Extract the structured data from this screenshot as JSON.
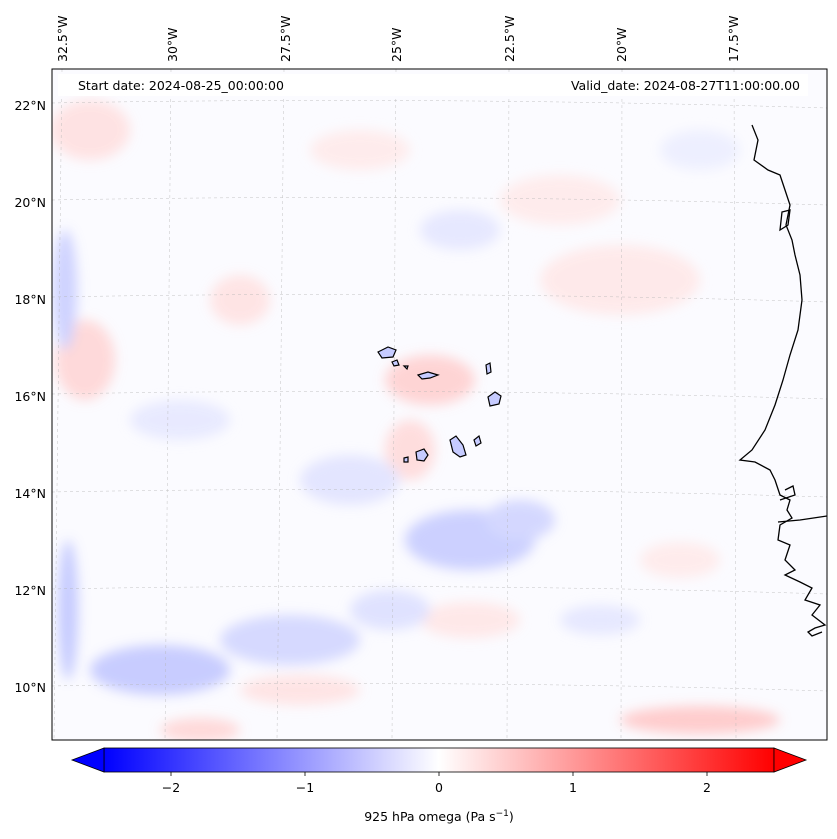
{
  "header": {
    "start_date": "Start date: 2024-08-25_00:00:00",
    "valid_date": "Valid_date: 2024-08-27T11:00:00.00"
  },
  "axes": {
    "lon_labels": [
      "32.5°W",
      "30°W",
      "27.5°W",
      "25°W",
      "22.5°W",
      "20°W",
      "17.5°W"
    ],
    "lat_labels": [
      "22°N",
      "20°N",
      "18°N",
      "16°N",
      "14°N",
      "12°N",
      "10°N"
    ]
  },
  "colorbar": {
    "ticks": [
      "−2",
      "−1",
      "0",
      "1",
      "2"
    ],
    "tick_values": [
      -2,
      -1,
      0,
      1,
      2
    ],
    "range": [
      -2.6,
      2.6
    ],
    "label_main": "925 hPa omega (Pa s",
    "label_exp": "−1",
    "label_close": ")",
    "colors": {
      "negative": "#0000ff",
      "zero": "#ffffff",
      "positive": "#ff0000"
    }
  },
  "map": {
    "projection": "conic",
    "lon_range": [
      -33,
      -15
    ],
    "lat_range": [
      9,
      22.5
    ],
    "gridlines": true,
    "coastline_color": "#000000",
    "field_colors": {
      "light_blue": "#dde0ff",
      "mid_blue": "#b9bfff",
      "light_red": "#ffe3e3",
      "mid_red": "#ffc8c8"
    }
  }
}
